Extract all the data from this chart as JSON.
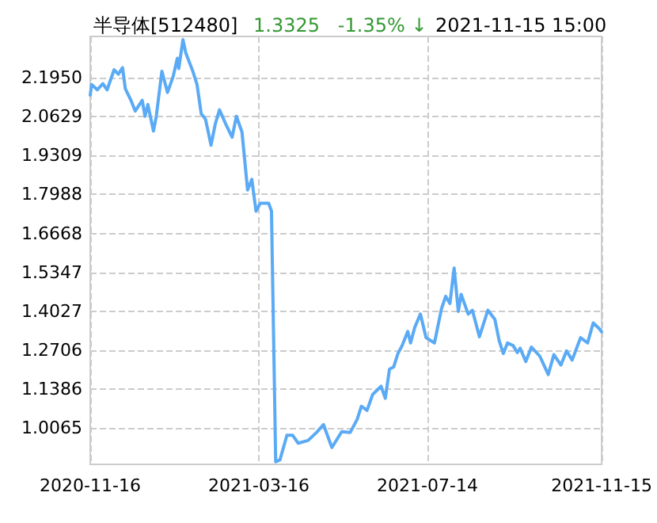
{
  "chart_data": {
    "type": "line",
    "title": "半导体[512480]",
    "subtitle": "1.3325   -1.35% ↓",
    "annotations": [
      "2021-11-15 15:00"
    ],
    "x": [
      "2020-11-16",
      "2020-11-17",
      "2020-11-21",
      "2020-11-25",
      "2020-11-28",
      "2020-12-03",
      "2020-12-06",
      "2020-12-09",
      "2020-12-11",
      "2020-12-15",
      "2020-12-18",
      "2020-12-23",
      "2020-12-25",
      "2020-12-27",
      "2020-12-31",
      "2021-01-02",
      "2021-01-06",
      "2021-01-10",
      "2021-01-14",
      "2021-01-17",
      "2021-01-18",
      "2021-01-21",
      "2021-01-23",
      "2021-01-28",
      "2021-01-31",
      "2021-02-03",
      "2021-02-06",
      "2021-02-10",
      "2021-02-13",
      "2021-02-16",
      "2021-02-21",
      "2021-02-25",
      "2021-02-28",
      "2021-03-04",
      "2021-03-08",
      "2021-03-11",
      "2021-03-14",
      "2021-03-17",
      "2021-03-23",
      "2021-03-25",
      "2021-03-28",
      "2021-03-31",
      "2021-04-05",
      "2021-04-09",
      "2021-04-13",
      "2021-04-20",
      "2021-04-26",
      "2021-05-01",
      "2021-05-07",
      "2021-05-14",
      "2021-05-20",
      "2021-05-25",
      "2021-05-28",
      "2021-06-01",
      "2021-06-05",
      "2021-06-11",
      "2021-06-14",
      "2021-06-17",
      "2021-06-20",
      "2021-06-23",
      "2021-06-26",
      "2021-06-30",
      "2021-07-02",
      "2021-07-05",
      "2021-07-09",
      "2021-07-13",
      "2021-07-19",
      "2021-07-24",
      "2021-07-27",
      "2021-07-30",
      "2021-08-02",
      "2021-08-05",
      "2021-08-07",
      "2021-08-12",
      "2021-08-15",
      "2021-08-20",
      "2021-08-26",
      "2021-08-31",
      "2021-09-03",
      "2021-09-06",
      "2021-09-09",
      "2021-09-13",
      "2021-09-16",
      "2021-09-18",
      "2021-09-22",
      "2021-09-26",
      "2021-10-02",
      "2021-10-08",
      "2021-10-12",
      "2021-10-17",
      "2021-10-21",
      "2021-10-25",
      "2021-10-31",
      "2021-11-05",
      "2021-11-09",
      "2021-11-13",
      "2021-11-15"
    ],
    "series": [
      {
        "color": "#5aaaf5",
        "values": [
          2.136,
          2.172,
          2.154,
          2.175,
          2.154,
          2.222,
          2.207,
          2.229,
          2.157,
          2.118,
          2.082,
          2.118,
          2.064,
          2.104,
          2.014,
          2.064,
          2.217,
          2.145,
          2.199,
          2.261,
          2.226,
          2.324,
          2.279,
          2.217,
          2.172,
          2.073,
          2.055,
          1.966,
          2.038,
          2.086,
          2.032,
          1.993,
          2.064,
          2.011,
          1.814,
          1.85,
          1.742,
          1.769,
          1.769,
          1.742,
          0.892,
          0.898,
          0.982,
          0.982,
          0.955,
          0.964,
          0.991,
          1.018,
          0.94,
          0.994,
          0.991,
          1.036,
          1.08,
          1.066,
          1.12,
          1.148,
          1.107,
          1.206,
          1.214,
          1.259,
          1.286,
          1.334,
          1.295,
          1.348,
          1.393,
          1.313,
          1.295,
          1.411,
          1.453,
          1.429,
          1.549,
          1.402,
          1.46,
          1.393,
          1.406,
          1.316,
          1.406,
          1.375,
          1.304,
          1.259,
          1.295,
          1.286,
          1.262,
          1.277,
          1.232,
          1.281,
          1.25,
          1.188,
          1.255,
          1.22,
          1.268,
          1.237,
          1.313,
          1.295,
          1.363,
          1.345,
          1.333
        ]
      }
    ],
    "xlim": [
      "2020-11-16",
      "2021-11-15"
    ],
    "xticks": [
      "2020-11-16",
      "2021-03-16",
      "2021-07-14",
      "2021-11-15"
    ],
    "ylim": [
      0.883,
      2.335
    ],
    "yticks": [
      {
        "value": 2.195,
        "label": "2.1950"
      },
      {
        "value": 2.0629,
        "label": "2.0629"
      },
      {
        "value": 1.9309,
        "label": "1.9309"
      },
      {
        "value": 1.7988,
        "label": "1.7988"
      },
      {
        "value": 1.6668,
        "label": "1.6668"
      },
      {
        "value": 1.5347,
        "label": "1.5347"
      },
      {
        "value": 1.4027,
        "label": "1.4027"
      },
      {
        "value": 1.2706,
        "label": "1.2706"
      },
      {
        "value": 1.1386,
        "label": "1.1386"
      },
      {
        "value": 1.0065,
        "label": "1.0065"
      }
    ],
    "grid": true,
    "marker": "none",
    "line_style": "solid"
  }
}
